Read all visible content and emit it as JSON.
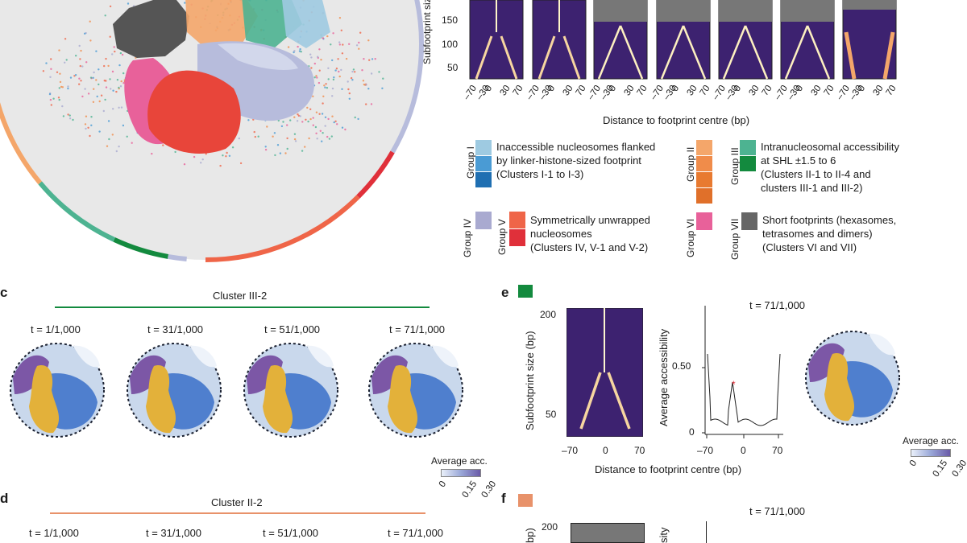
{
  "panels": {
    "c_letter": "c",
    "d_letter": "d",
    "e_letter": "e",
    "f_letter": "f"
  },
  "top_heatmaps": {
    "ylabel": "Subfootprint size (bp)",
    "yticks": [
      "150",
      "100",
      "50"
    ],
    "xticks": [
      "–70",
      "–30",
      "0",
      "30",
      "70"
    ],
    "xlabel": "Distance to footprint centre (bp)"
  },
  "legend": {
    "group1": "Group I",
    "group1_text": [
      "Inaccessible nucleosomes flanked",
      "by linker-histone-sized footprint",
      "(Clusters I-1 to I-3)"
    ],
    "group2": "Group II",
    "group3": "Group III",
    "group23_text": [
      "Intranucleosomal accessibility",
      "at SHL ±1.5 to 6",
      "(Clusters II-1 to II-4 and",
      "clusters III-1 and III-2)"
    ],
    "group4": "Group IV",
    "group5": "Group V",
    "group45_text": [
      "Symmetrically unwrapped",
      "nucleosomes",
      "(Clusters IV, V-1 and V-2)"
    ],
    "group6": "Group VI",
    "group7": "Group VII",
    "group67_text": [
      "Short footprints (hexasomes,",
      "tetrasomes and dimers)",
      "(Clusters VI and VII)"
    ]
  },
  "panel_c": {
    "title": "Cluster III-2",
    "times": [
      "t = 1/1,000",
      "t = 31/1,000",
      "t = 51/1,000",
      "t = 71/1,000"
    ],
    "colorbar_label": "Average acc.",
    "colorbar_ticks": [
      "0",
      "0.15",
      "0.30"
    ]
  },
  "panel_d": {
    "title": "Cluster II-2",
    "times": [
      "t = 1/1,000",
      "t = 31/1,000",
      "t = 51/1,000",
      "t = 71/1,000"
    ]
  },
  "panel_e": {
    "time": "t = 71/1,000",
    "heat_ylabel": "Subfootprint size (bp)",
    "heat_yticks": [
      "200",
      "50"
    ],
    "xticks": [
      "–70",
      "0",
      "70"
    ],
    "xlabel": "Distance to footprint centre (bp)",
    "line_ylabel": "Average accessibility",
    "line_yticks": [
      "0.50",
      "0"
    ],
    "colorbar_label": "Average acc.",
    "colorbar_ticks": [
      "0",
      "0.15",
      "0.30"
    ]
  },
  "panel_f": {
    "time": "t = 71/1,000",
    "heat_ylabel_frag": "bp)",
    "heat_ytick": "200",
    "line_ylabel_frag": "sity"
  },
  "colors": {
    "group1": [
      "#9ecae1",
      "#4a9bd4",
      "#1f6fb2"
    ],
    "group2": [
      "#f4a66a",
      "#f08c4a",
      "#e87a30"
    ],
    "group3": [
      "#4db391",
      "#138a3e"
    ],
    "group4": "#a9aad0",
    "group5": [
      "#ef6548",
      "#e0303a"
    ],
    "group6": "#e8619a",
    "group7": "#666666",
    "cluster_III2": "#138a3e",
    "cluster_II2": "#e8926a"
  }
}
